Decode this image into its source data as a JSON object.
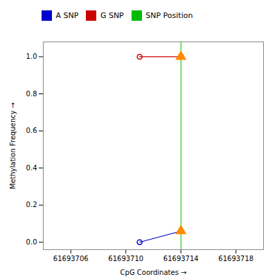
{
  "chart_data": {
    "type": "line",
    "xlabel": "CpG Coordinates",
    "ylabel": "Methylation Frequency",
    "xlim": [
      61693704,
      61693720
    ],
    "ylim": [
      -0.04,
      1.08
    ],
    "xticks": [
      61693706,
      61693710,
      61693714,
      61693718
    ],
    "yticks": [
      {
        "value": 0.0,
        "label": "0.0"
      },
      0.2,
      0.4,
      0.6,
      0.8,
      {
        "value": 1.0,
        "label": "1.0"
      }
    ],
    "grid": false,
    "legend": "right",
    "series": [
      {
        "name": "A SNP",
        "color": "#0000CC",
        "marker": "circle",
        "x": [
          61693711,
          61693714
        ],
        "values": [
          0.0,
          0.06
        ]
      },
      {
        "name": "G SNP",
        "color": "#CC0000",
        "marker": "circle",
        "x": [
          61693711,
          61693714
        ],
        "values": [
          1.0,
          1.0
        ]
      },
      {
        "name": "SNP Position",
        "type": "vline",
        "color": "#00BB00",
        "x": [
          61693714
        ]
      },
      {
        "type": "scatter",
        "marker": "triangle",
        "color": "#FF8C00",
        "x": [
          61693714,
          61693714
        ],
        "values": [
          1.0,
          0.06
        ]
      }
    ]
  }
}
